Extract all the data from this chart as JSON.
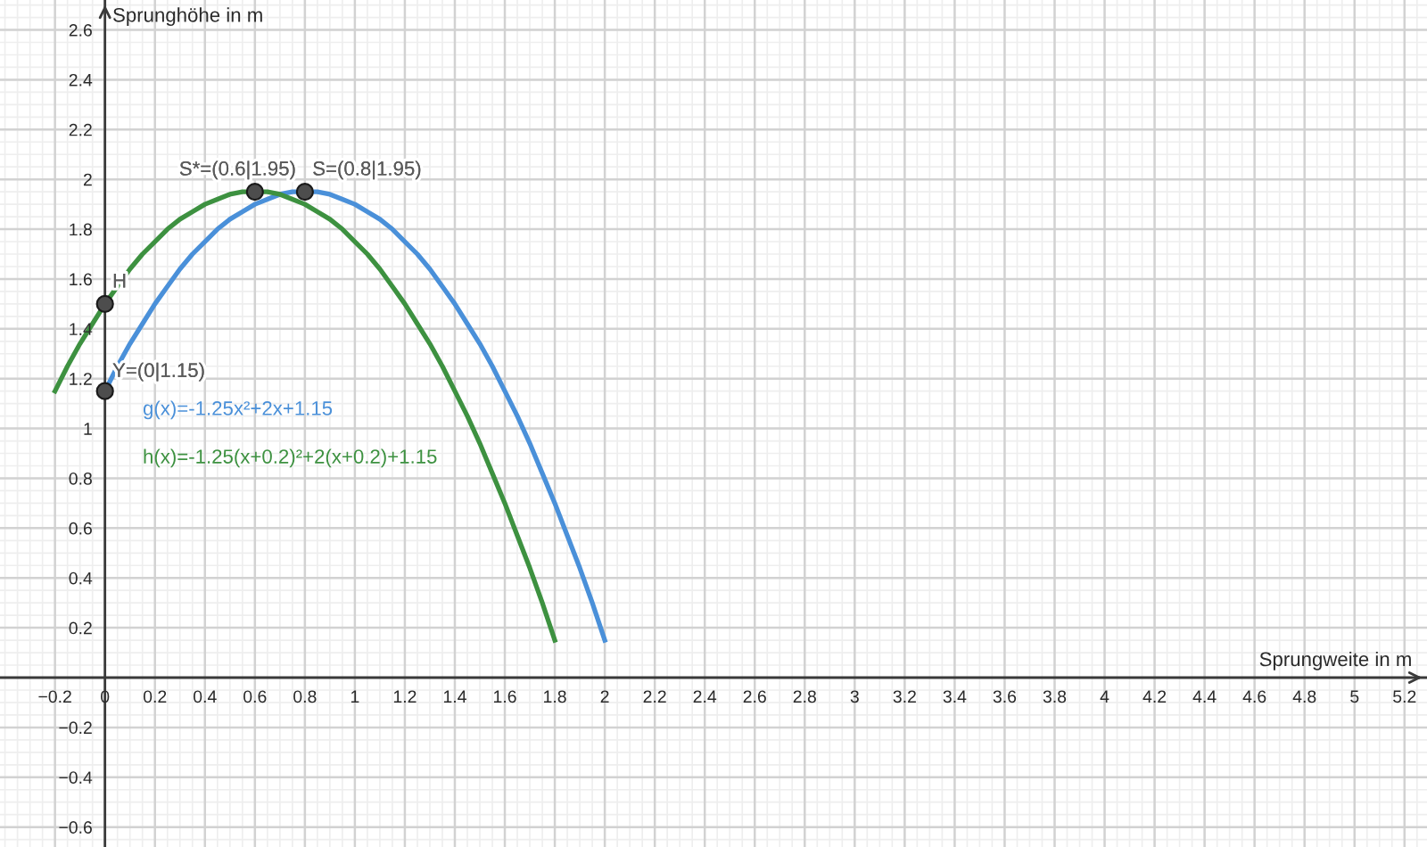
{
  "chart_data": {
    "type": "line",
    "xlabel": "Sprungweite in m",
    "ylabel": "Sprunghöhe in m",
    "xlim": [
      -0.42,
      5.29
    ],
    "ylim": [
      -0.68,
      2.72
    ],
    "xticks": [
      {
        "value": -0.2,
        "label": "−0.2"
      },
      0,
      0.2,
      0.4,
      0.6,
      0.8,
      1,
      1.2,
      1.4,
      1.6,
      1.8,
      2,
      2.2,
      2.4,
      2.6,
      2.8,
      3,
      3.2,
      3.4,
      3.6,
      3.8,
      4,
      4.2,
      4.4,
      4.6,
      4.8,
      5,
      5.2
    ],
    "yticks": [
      {
        "value": -0.6,
        "label": "−0.6"
      },
      {
        "value": -0.4,
        "label": "−0.4"
      },
      {
        "value": -0.2,
        "label": "−0.2"
      },
      0.2,
      0.4,
      0.6,
      0.8,
      1,
      1.2,
      1.4,
      1.6,
      1.8,
      2,
      2.2,
      2.4,
      2.6
    ],
    "grid": true,
    "series": [
      {
        "name": "g(x)=-1.25x²+2x+1.15",
        "color": "#4a90d9",
        "x": [
          0,
          0.05,
          0.1,
          0.15,
          0.2,
          0.25,
          0.3,
          0.35,
          0.4,
          0.45,
          0.5,
          0.55,
          0.6,
          0.65,
          0.7,
          0.75,
          0.8,
          0.85,
          0.9,
          0.95,
          1,
          1.05,
          1.1,
          1.15,
          1.2,
          1.25,
          1.3,
          1.35,
          1.4,
          1.45,
          1.5,
          1.55,
          1.6,
          1.65,
          1.7,
          1.75,
          1.8,
          1.85,
          1.9,
          1.95,
          2
        ],
        "values": [
          1.15,
          1.25,
          1.34,
          1.42,
          1.5,
          1.57,
          1.64,
          1.7,
          1.75,
          1.8,
          1.84,
          1.87,
          1.9,
          1.92,
          1.94,
          1.95,
          1.95,
          1.95,
          1.94,
          1.92,
          1.9,
          1.87,
          1.84,
          1.8,
          1.75,
          1.7,
          1.64,
          1.57,
          1.5,
          1.42,
          1.34,
          1.25,
          1.15,
          1.05,
          0.94,
          0.82,
          0.7,
          0.57,
          0.44,
          0.3,
          0.15
        ]
      },
      {
        "name": "h(x)=-1.25(x+0.2)²+2(x+0.2)+1.15",
        "color": "#3d9140",
        "x": [
          -0.2,
          -0.15,
          -0.1,
          -0.05,
          0,
          0.05,
          0.1,
          0.15,
          0.2,
          0.25,
          0.3,
          0.35,
          0.4,
          0.45,
          0.5,
          0.55,
          0.6,
          0.65,
          0.7,
          0.75,
          0.8,
          0.85,
          0.9,
          0.95,
          1,
          1.05,
          1.1,
          1.15,
          1.2,
          1.25,
          1.3,
          1.35,
          1.4,
          1.45,
          1.5,
          1.55,
          1.6,
          1.65,
          1.7,
          1.75,
          1.8
        ],
        "values": [
          1.15,
          1.25,
          1.34,
          1.42,
          1.5,
          1.57,
          1.64,
          1.7,
          1.75,
          1.8,
          1.84,
          1.87,
          1.9,
          1.92,
          1.94,
          1.95,
          1.95,
          1.95,
          1.94,
          1.92,
          1.9,
          1.87,
          1.84,
          1.8,
          1.75,
          1.7,
          1.64,
          1.57,
          1.5,
          1.42,
          1.34,
          1.25,
          1.15,
          1.05,
          0.94,
          0.82,
          0.7,
          0.57,
          0.44,
          0.3,
          0.15
        ]
      },
      {
        "type": "scatter",
        "color": "#4d4d4d",
        "marker": "circle",
        "x": [
          0.6,
          0.8,
          0,
          0
        ],
        "values": [
          1.95,
          1.95,
          1.5,
          1.15
        ]
      }
    ],
    "annotations": [
      {
        "text": "S*=(0.6|1.95)",
        "x": 0.6,
        "y": 1.95
      },
      {
        "text": "S=(0.8|1.95)",
        "x": 0.8,
        "y": 1.95
      },
      {
        "text": "H",
        "x": 0,
        "y": 1.5
      },
      {
        "text": "Y=(0|1.15)",
        "x": 0,
        "y": 1.15
      }
    ]
  }
}
